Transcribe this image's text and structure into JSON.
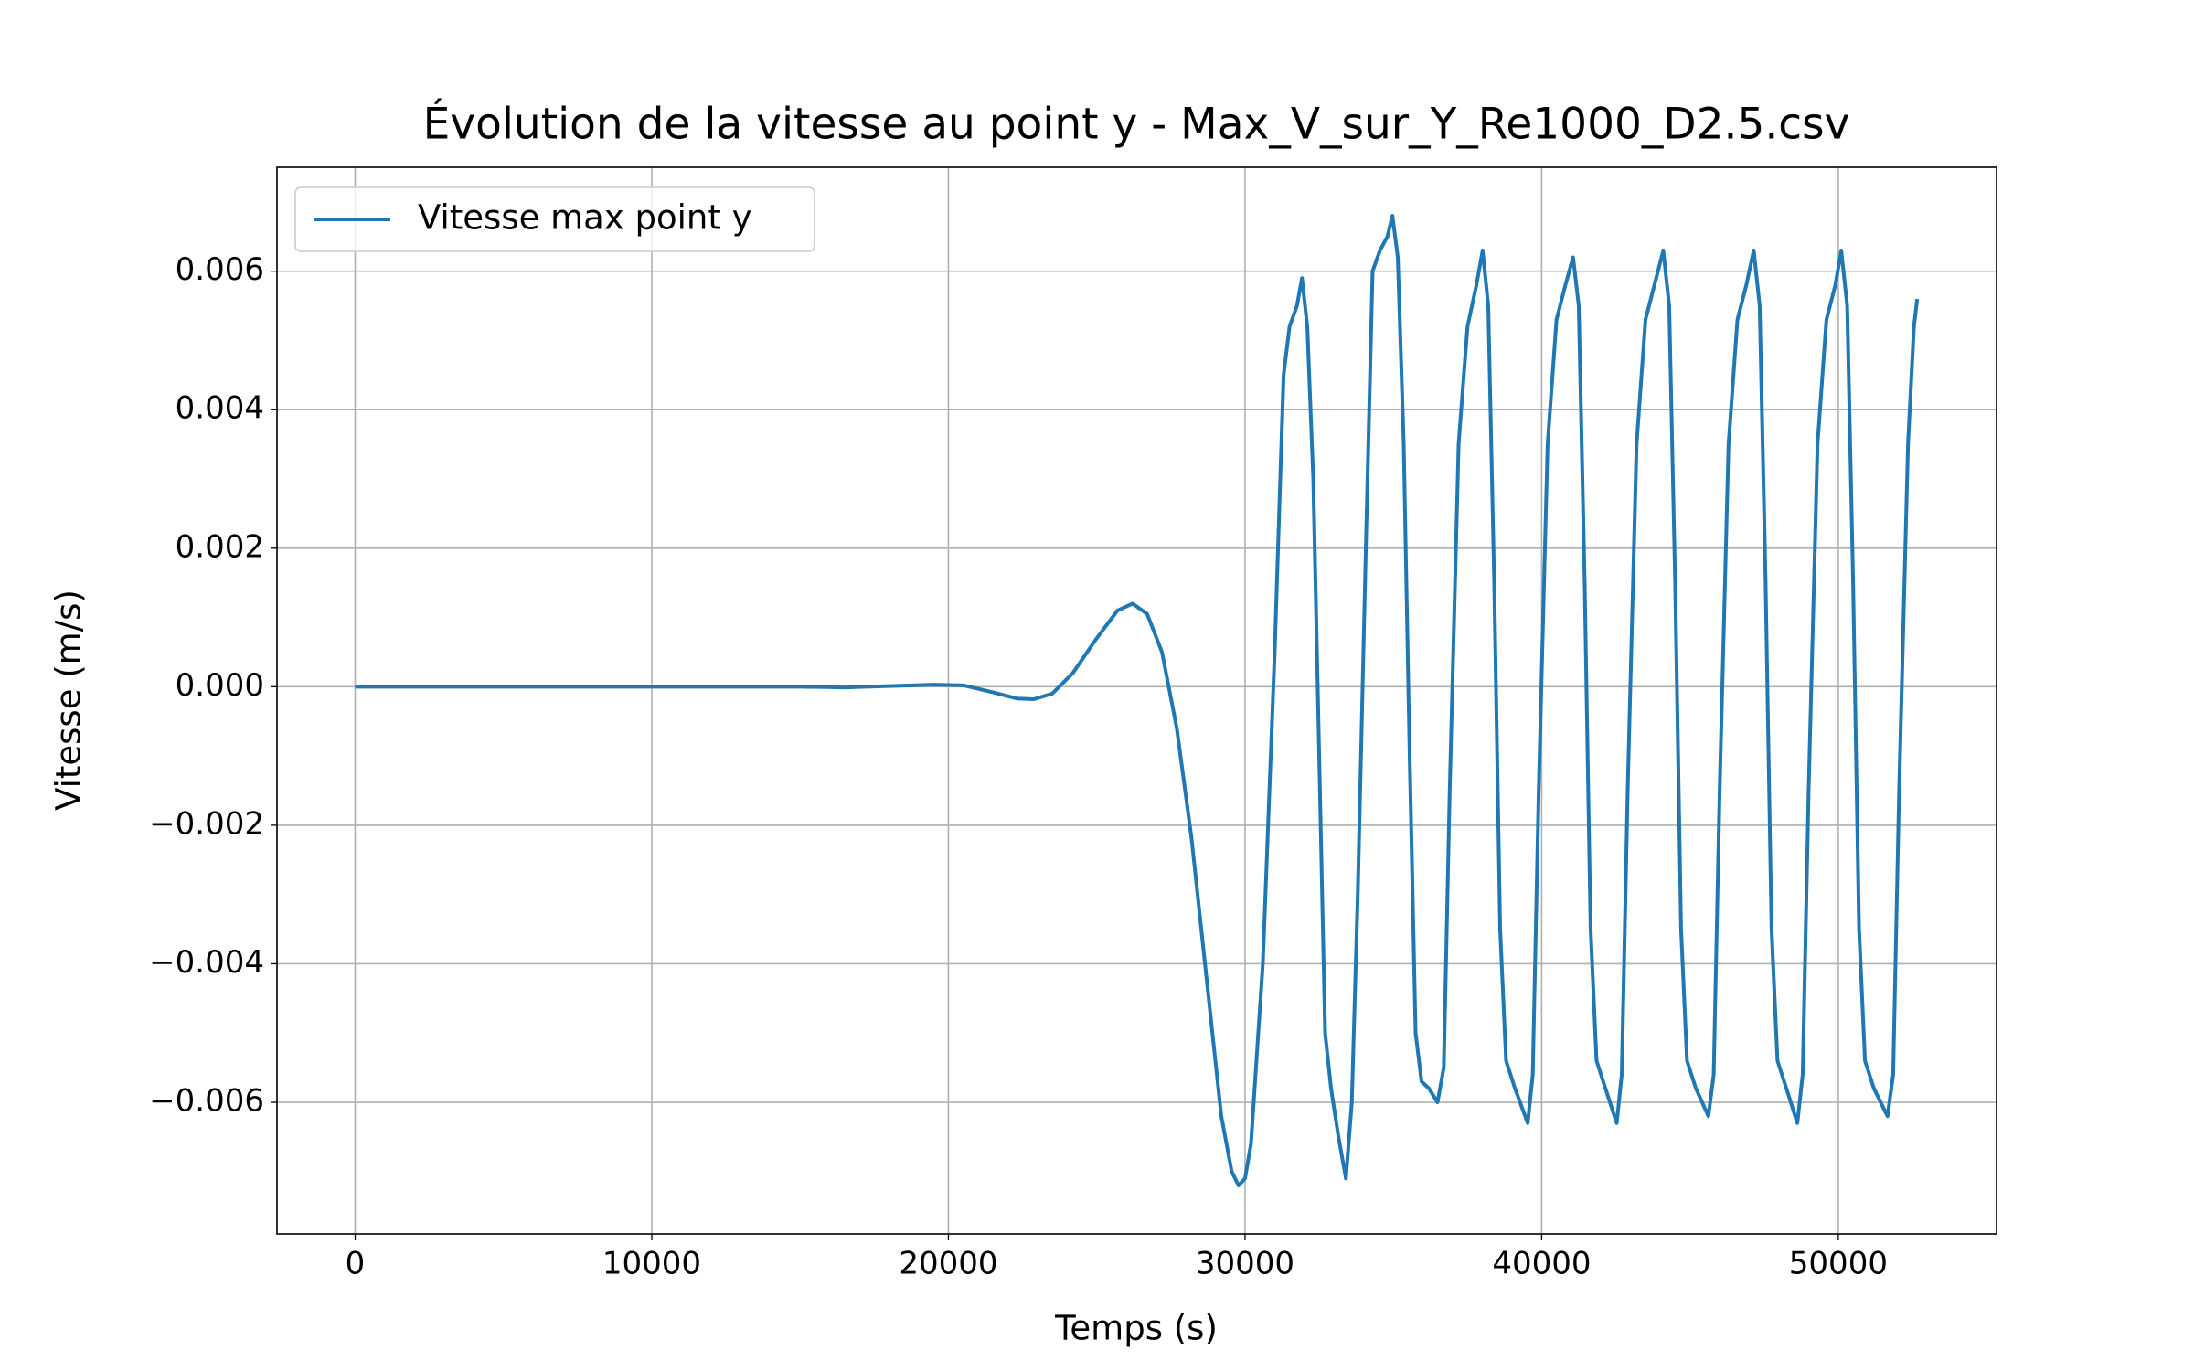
{
  "chart_data": {
    "type": "line",
    "title": "Évolution de la vitesse au point y - Max_V_sur_Y_Re1000_D2.5.csv",
    "xlabel": "Temps (s)",
    "ylabel": "Vitesse (m/s)",
    "x": [
      0,
      5000,
      10000,
      15000,
      16500,
      18000,
      19500,
      20500,
      21500,
      22300,
      22880,
      23500,
      24200,
      25000,
      25700,
      26210,
      26700,
      27200,
      27700,
      28200,
      28700,
      29200,
      29550,
      29780,
      30000,
      30200,
      30600,
      31000,
      31300,
      31500,
      31750,
      31920,
      32100,
      32300,
      32500,
      32700,
      32900,
      33150,
      33400,
      33600,
      33800,
      34100,
      34300,
      34550,
      34800,
      34970,
      35150,
      35350,
      35550,
      35750,
      35950,
      36200,
      36490,
      36700,
      36900,
      37200,
      37500,
      37800,
      38010,
      38200,
      38400,
      38600,
      38800,
      39100,
      39530,
      39700,
      39900,
      40200,
      40500,
      40800,
      41060,
      41250,
      41450,
      41650,
      41850,
      42150,
      42530,
      42700,
      42900,
      43200,
      43500,
      43800,
      44100,
      44300,
      44500,
      44700,
      44900,
      45200,
      45620,
      45800,
      46000,
      46300,
      46600,
      46900,
      47150,
      47350,
      47550,
      47750,
      47950,
      48250,
      48620,
      48800,
      49000,
      49300,
      49600,
      49900,
      50100,
      50300,
      50500,
      50700,
      50900,
      51200,
      51660,
      51850,
      52050,
      52350,
      52550,
      52660
    ],
    "series": [
      {
        "name": "Vitesse max point y",
        "color": "#1f77b4",
        "values": [
          0,
          0,
          0,
          0,
          -1e-05,
          1e-05,
          3e-05,
          2e-05,
          -8e-05,
          -0.00017,
          -0.00018,
          -0.0001,
          0.0002,
          0.0007,
          0.0011,
          0.0012,
          0.00105,
          0.0005,
          -0.0006,
          -0.0022,
          -0.0042,
          -0.0062,
          -0.007,
          -0.0072,
          -0.0071,
          -0.0066,
          -0.004,
          0.0005,
          0.0045,
          0.0052,
          0.0055,
          0.0059,
          0.0052,
          0.003,
          -0.001,
          -0.005,
          -0.0058,
          -0.0065,
          -0.0071,
          -0.006,
          -0.003,
          0.0025,
          0.006,
          0.0063,
          0.0065,
          0.0068,
          0.0062,
          0.0035,
          -0.001,
          -0.005,
          -0.0057,
          -0.0058,
          -0.006,
          -0.0055,
          -0.0015,
          0.0035,
          0.0052,
          0.0058,
          0.0063,
          0.0055,
          0.0015,
          -0.0035,
          -0.0054,
          -0.0058,
          -0.0063,
          -0.0056,
          -0.0015,
          0.0035,
          0.0053,
          0.0058,
          0.0062,
          0.0055,
          0.0015,
          -0.0035,
          -0.0054,
          -0.0058,
          -0.0063,
          -0.0056,
          -0.0015,
          0.0035,
          0.0053,
          0.0058,
          0.0063,
          0.0055,
          0.0015,
          -0.0035,
          -0.0054,
          -0.0058,
          -0.0062,
          -0.0056,
          -0.0015,
          0.0035,
          0.0053,
          0.0058,
          0.0063,
          0.0055,
          0.0015,
          -0.0035,
          -0.0054,
          -0.0058,
          -0.0063,
          -0.0056,
          -0.0015,
          0.0035,
          0.0053,
          0.0058,
          0.0063,
          0.0055,
          0.0015,
          -0.0035,
          -0.0054,
          -0.0058,
          -0.0062,
          -0.0056,
          -0.0015,
          0.0035,
          0.0052,
          0.0056
        ]
      }
    ],
    "xlim": [
      -2635,
      55335
    ],
    "ylim": [
      -0.0079,
      0.0075
    ],
    "xticks": [
      0,
      10000,
      20000,
      30000,
      40000,
      50000
    ],
    "yticks": [
      {
        "value": -0.006,
        "label": "−0.006"
      },
      {
        "value": -0.004,
        "label": "−0.004"
      },
      {
        "value": -0.002,
        "label": "−0.002"
      },
      {
        "value": 0,
        "label": "0.000"
      },
      0.002,
      0.004,
      0.006
    ],
    "grid": true,
    "legend": "upper left"
  }
}
